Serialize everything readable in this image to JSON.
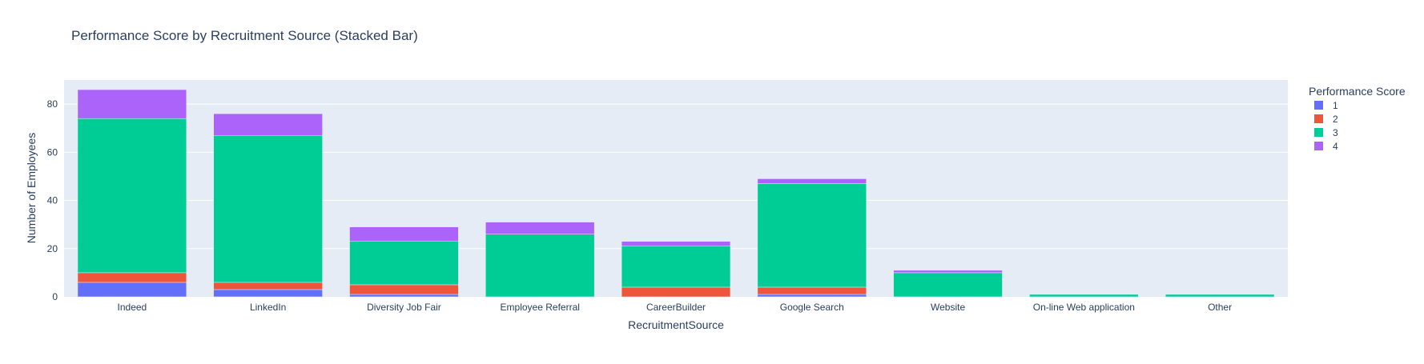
{
  "chart_data": {
    "type": "bar",
    "barmode": "stack",
    "title": "Performance Score by Recruitment Source (Stacked Bar)",
    "xlabel": "RecruitmentSource",
    "ylabel": "Number of Employees",
    "ylim": [
      0,
      90
    ],
    "yticks": [
      0,
      20,
      40,
      60,
      80
    ],
    "grid": true,
    "legend_title": "Performance Score",
    "legend_position": "right",
    "categories": [
      "Indeed",
      "LinkedIn",
      "Diversity Job Fair",
      "Employee Referral",
      "CareerBuilder",
      "Google Search",
      "Website",
      "On-line Web application",
      "Other"
    ],
    "series": [
      {
        "name": "1",
        "color": "#636efa",
        "values": [
          6,
          3,
          1,
          0,
          0,
          1,
          0,
          0,
          0
        ]
      },
      {
        "name": "2",
        "color": "#EF553B",
        "values": [
          4,
          3,
          4,
          0,
          4,
          3,
          0,
          0,
          0
        ]
      },
      {
        "name": "3",
        "color": "#00cc96",
        "values": [
          64,
          61,
          18,
          26,
          17,
          43,
          10,
          1,
          1
        ]
      },
      {
        "name": "4",
        "color": "#ab63fa",
        "values": [
          12,
          9,
          6,
          5,
          2,
          2,
          1,
          0,
          0
        ]
      }
    ]
  }
}
